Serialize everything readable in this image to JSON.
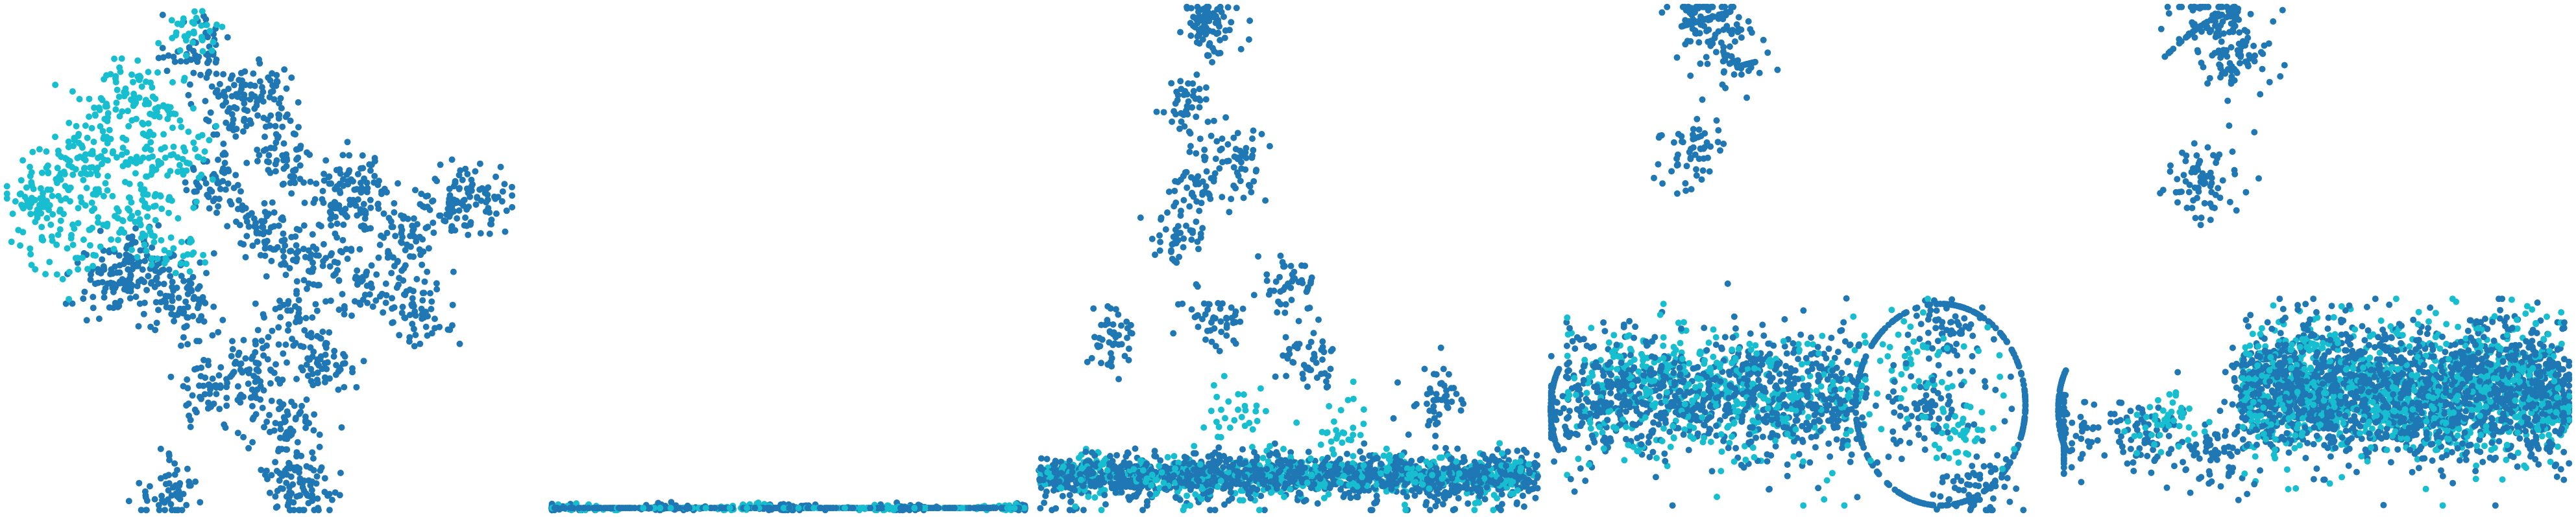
{
  "figure": {
    "colors": {
      "primary": "#1f77b4",
      "secondary": "#17becf"
    }
  },
  "chart_data": [
    {
      "type": "scatter",
      "panel": 1,
      "title": "",
      "xlabel": "",
      "ylabel": "",
      "axes_visible": false,
      "grid": false,
      "legend": "none",
      "series": [
        {
          "color": "#1f77b4",
          "points": [
            [
              0.42,
              0.35
            ],
            [
              0.5,
              0.45
            ],
            [
              0.55,
              0.3
            ],
            [
              0.6,
              0.5
            ],
            [
              0.65,
              0.4
            ],
            [
              0.7,
              0.35
            ],
            [
              0.72,
              0.55
            ],
            [
              0.78,
              0.45
            ],
            [
              0.82,
              0.6
            ],
            [
              0.88,
              0.4
            ],
            [
              0.93,
              0.38
            ],
            [
              0.58,
              0.62
            ],
            [
              0.62,
              0.7
            ],
            [
              0.48,
              0.72
            ],
            [
              0.4,
              0.75
            ],
            [
              0.35,
              0.6
            ],
            [
              0.3,
              0.55
            ],
            [
              0.25,
              0.5
            ],
            [
              0.2,
              0.55
            ],
            [
              0.45,
              0.2
            ],
            [
              0.52,
              0.18
            ],
            [
              0.38,
              0.1
            ],
            [
              0.55,
              0.82
            ],
            [
              0.57,
              0.92
            ],
            [
              0.58,
              0.97
            ],
            [
              0.32,
              0.96
            ]
          ]
        },
        {
          "color": "#17becf",
          "points": [
            [
              0.1,
              0.35
            ],
            [
              0.15,
              0.28
            ],
            [
              0.2,
              0.22
            ],
            [
              0.25,
              0.15
            ],
            [
              0.3,
              0.2
            ],
            [
              0.35,
              0.28
            ],
            [
              0.28,
              0.4
            ],
            [
              0.22,
              0.42
            ],
            [
              0.05,
              0.38
            ],
            [
              0.08,
              0.42
            ],
            [
              0.12,
              0.48
            ],
            [
              0.18,
              0.32
            ],
            [
              0.37,
              0.05
            ],
            [
              0.33,
              0.48
            ],
            [
              0.27,
              0.3
            ]
          ]
        }
      ]
    },
    {
      "type": "scatter",
      "panel": 2,
      "title": "",
      "xlabel": "",
      "ylabel": "",
      "axes_visible": false,
      "grid": false,
      "legend": "none",
      "note_collapsed": true,
      "series": [
        {
          "color": "#1f77b4",
          "points": [
            [
              0.0,
              0.995
            ],
            [
              0.25,
              0.995
            ],
            [
              0.5,
              0.995
            ],
            [
              0.75,
              0.995
            ],
            [
              1.0,
              0.995
            ]
          ]
        },
        {
          "color": "#17becf",
          "points": [
            [
              0.1,
              0.995
            ],
            [
              0.4,
              0.995
            ],
            [
              0.7,
              0.995
            ],
            [
              0.95,
              0.995
            ]
          ]
        }
      ]
    },
    {
      "type": "scatter",
      "panel": 3,
      "title": "",
      "xlabel": "",
      "ylabel": "",
      "axes_visible": false,
      "grid": false,
      "legend": "none",
      "series": [
        {
          "color": "#1f77b4",
          "points": [
            [
              0.05,
              0.95
            ],
            [
              0.2,
              0.94
            ],
            [
              0.35,
              0.95
            ],
            [
              0.5,
              0.93
            ],
            [
              0.65,
              0.94
            ],
            [
              0.8,
              0.95
            ],
            [
              0.95,
              0.94
            ],
            [
              0.33,
              0.02
            ],
            [
              0.35,
              0.05
            ],
            [
              0.3,
              0.2
            ],
            [
              0.32,
              0.35
            ],
            [
              0.4,
              0.3
            ],
            [
              0.28,
              0.45
            ],
            [
              0.5,
              0.55
            ],
            [
              0.15,
              0.65
            ],
            [
              0.35,
              0.62
            ],
            [
              0.55,
              0.7
            ],
            [
              0.8,
              0.78
            ]
          ]
        },
        {
          "color": "#17becf",
          "points": [
            [
              0.1,
              0.93
            ],
            [
              0.3,
              0.95
            ],
            [
              0.45,
              0.92
            ],
            [
              0.7,
              0.93
            ],
            [
              0.9,
              0.95
            ],
            [
              0.4,
              0.8
            ],
            [
              0.6,
              0.85
            ]
          ]
        }
      ]
    },
    {
      "type": "scatter",
      "panel": 4,
      "title": "",
      "xlabel": "",
      "ylabel": "",
      "axes_visible": false,
      "grid": false,
      "legend": "none",
      "series": [
        {
          "color": "#1f77b4",
          "points": [
            [
              0.1,
              0.78
            ],
            [
              0.2,
              0.75
            ],
            [
              0.3,
              0.8
            ],
            [
              0.4,
              0.72
            ],
            [
              0.55,
              0.78
            ],
            [
              0.75,
              0.8
            ],
            [
              0.8,
              0.65
            ],
            [
              0.85,
              0.95
            ],
            [
              0.3,
              0.02
            ],
            [
              0.35,
              0.1
            ],
            [
              0.28,
              0.3
            ],
            [
              0.0,
              0.8
            ]
          ]
        },
        {
          "color": "#17becf",
          "points": [
            [
              0.15,
              0.72
            ],
            [
              0.25,
              0.7
            ],
            [
              0.35,
              0.75
            ],
            [
              0.45,
              0.8
            ],
            [
              0.72,
              0.7
            ],
            [
              0.82,
              0.85
            ]
          ]
        }
      ]
    },
    {
      "type": "scatter",
      "panel": 5,
      "title": "",
      "xlabel": "",
      "ylabel": "",
      "axes_visible": false,
      "grid": false,
      "legend": "none",
      "series": [
        {
          "color": "#1f77b4",
          "points": [
            [
              0.4,
              0.75
            ],
            [
              0.5,
              0.78
            ],
            [
              0.6,
              0.72
            ],
            [
              0.7,
              0.8
            ],
            [
              0.8,
              0.76
            ],
            [
              0.9,
              0.75
            ],
            [
              0.98,
              0.78
            ],
            [
              0.15,
              0.85
            ],
            [
              0.3,
              0.88
            ],
            [
              0.3,
              0.03
            ],
            [
              0.35,
              0.1
            ],
            [
              0.28,
              0.35
            ],
            [
              0.0,
              0.85
            ]
          ]
        },
        {
          "color": "#17becf",
          "points": [
            [
              0.45,
              0.7
            ],
            [
              0.55,
              0.8
            ],
            [
              0.65,
              0.75
            ],
            [
              0.75,
              0.82
            ],
            [
              0.85,
              0.72
            ],
            [
              0.95,
              0.8
            ],
            [
              0.2,
              0.82
            ]
          ]
        }
      ]
    }
  ]
}
